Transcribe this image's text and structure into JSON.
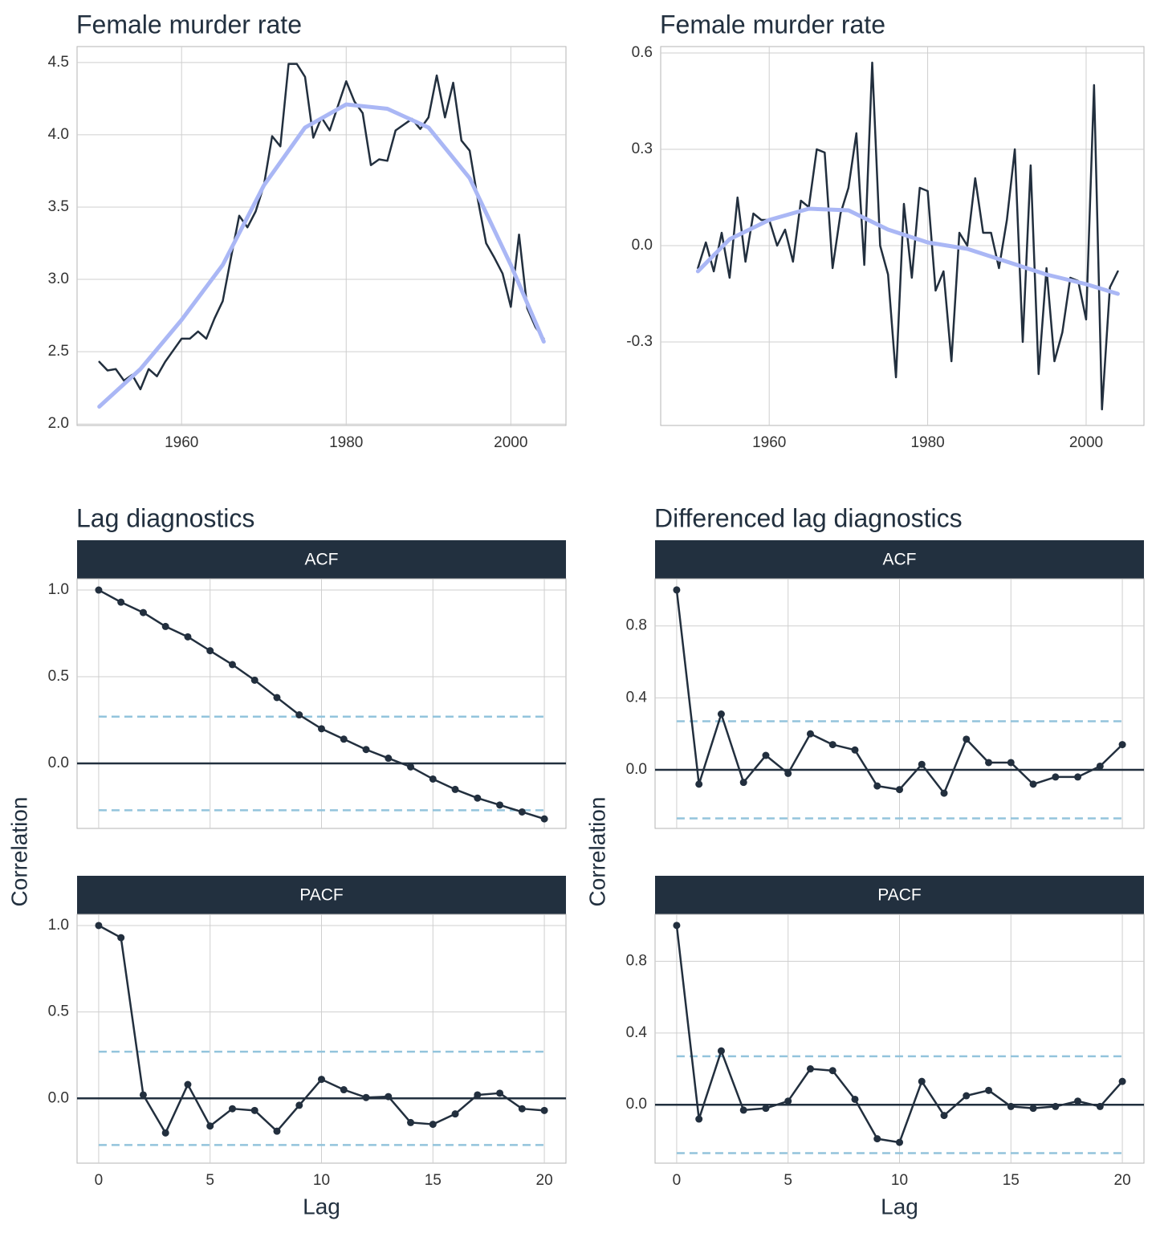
{
  "chart_data": [
    {
      "type": "line",
      "title": "Female murder rate",
      "x": [
        1950,
        1951,
        1952,
        1953,
        1954,
        1955,
        1956,
        1957,
        1958,
        1959,
        1960,
        1961,
        1962,
        1963,
        1964,
        1965,
        1966,
        1967,
        1968,
        1969,
        1970,
        1971,
        1972,
        1973,
        1974,
        1975,
        1976,
        1977,
        1978,
        1979,
        1980,
        1981,
        1982,
        1983,
        1984,
        1985,
        1986,
        1987,
        1988,
        1989,
        1990,
        1991,
        1992,
        1993,
        1994,
        1995,
        1996,
        1997,
        1998,
        1999,
        2000,
        2001,
        2002,
        2003,
        2004
      ],
      "series": [
        {
          "color": "#222f3e",
          "values": [
            2.43,
            2.37,
            2.38,
            2.3,
            2.34,
            2.24,
            2.38,
            2.33,
            2.43,
            2.51,
            2.59,
            2.59,
            2.64,
            2.59,
            2.73,
            2.85,
            3.15,
            3.44,
            3.36,
            3.47,
            3.65,
            3.99,
            3.92,
            4.49,
            4.49,
            4.4,
            3.98,
            4.12,
            4.03,
            4.2,
            4.37,
            4.23,
            4.15,
            3.79,
            3.83,
            3.82,
            4.03,
            4.07,
            4.11,
            4.04,
            4.12,
            4.41,
            4.12,
            4.36,
            3.96,
            3.89,
            3.55,
            3.25,
            3.15,
            3.04,
            2.81,
            3.31,
            2.8,
            2.67,
            2.59
          ]
        },
        {
          "color": "#aab7f5",
          "x": [
            1950,
            1955,
            1960,
            1965,
            1970,
            1975,
            1980,
            1985,
            1990,
            1995,
            2000,
            2004
          ],
          "values": [
            2.12,
            2.38,
            2.72,
            3.1,
            3.65,
            4.05,
            4.21,
            4.18,
            4.05,
            3.7,
            3.1,
            2.57
          ]
        }
      ],
      "xlim": [
        1947.3,
        2006.7
      ],
      "xticks": [
        1960,
        1980,
        2000
      ],
      "ylim": [
        1.99,
        4.61
      ],
      "yticks": [
        {
          "value": 2,
          "label": "2.0"
        },
        2.5,
        {
          "value": 3,
          "label": "3.0"
        },
        3.5,
        {
          "value": 4,
          "label": "4.0"
        },
        4.5
      ],
      "grid": true
    },
    {
      "type": "line",
      "title": "Female murder rate",
      "x": [
        1951,
        1952,
        1953,
        1954,
        1955,
        1956,
        1957,
        1958,
        1959,
        1960,
        1961,
        1962,
        1963,
        1964,
        1965,
        1966,
        1967,
        1968,
        1969,
        1970,
        1971,
        1972,
        1973,
        1974,
        1975,
        1976,
        1977,
        1978,
        1979,
        1980,
        1981,
        1982,
        1983,
        1984,
        1985,
        1986,
        1987,
        1988,
        1989,
        1990,
        1991,
        1992,
        1993,
        1994,
        1995,
        1996,
        1997,
        1998,
        1999,
        2000,
        2001,
        2002,
        2003,
        2004
      ],
      "series": [
        {
          "color": "#222f3e",
          "values": [
            -0.07,
            0.01,
            -0.08,
            0.04,
            -0.1,
            0.15,
            -0.05,
            0.1,
            0.08,
            0.08,
            0.0,
            0.05,
            -0.05,
            0.14,
            0.12,
            0.3,
            0.29,
            -0.07,
            0.1,
            0.18,
            0.35,
            -0.06,
            0.57,
            0.0,
            -0.09,
            -0.41,
            0.13,
            -0.1,
            0.18,
            0.17,
            -0.14,
            -0.08,
            -0.36,
            0.04,
            0.0,
            0.21,
            0.04,
            0.04,
            -0.07,
            0.08,
            0.3,
            -0.3,
            0.25,
            -0.4,
            -0.07,
            -0.36,
            -0.27,
            -0.1,
            -0.11,
            -0.23,
            0.5,
            -0.51,
            -0.13,
            -0.08
          ]
        },
        {
          "color": "#aab7f5",
          "x": [
            1951,
            1955,
            1960,
            1965,
            1970,
            1975,
            1980,
            1985,
            1990,
            1995,
            2000,
            2004
          ],
          "values": [
            -0.08,
            0.02,
            0.08,
            0.115,
            0.11,
            0.05,
            0.01,
            -0.01,
            -0.05,
            -0.09,
            -0.12,
            -0.15
          ]
        }
      ],
      "xlim": [
        1946.3,
        2007.3
      ],
      "xticks": [
        1960,
        1980,
        2000
      ],
      "ylim": [
        -0.56,
        0.62
      ],
      "yticks": [
        -0.3,
        {
          "value": 0,
          "label": "0.0"
        },
        0.3,
        0.6
      ],
      "grid": true
    },
    {
      "type": "acf",
      "title": "Lag diagnostics",
      "x_label": "Lag",
      "y_label": "Correlation",
      "x": [
        0,
        1,
        2,
        3,
        4,
        5,
        6,
        7,
        8,
        9,
        10,
        11,
        12,
        13,
        14,
        15,
        16,
        17,
        18,
        19,
        20
      ],
      "ci": 0.27,
      "color": "#222f3e",
      "ci_color": "#93c4dc",
      "xlim": [
        -0.97,
        20.97
      ],
      "xticks": [
        0,
        5,
        10,
        15,
        20
      ],
      "ylim": [
        -0.375,
        1.065
      ],
      "yticks": [
        {
          "value": 0,
          "label": "0.0"
        },
        0.5,
        {
          "value": 1,
          "label": "1.0"
        }
      ],
      "panels": [
        {
          "strip": "ACF",
          "values": [
            1.0,
            0.93,
            0.87,
            0.79,
            0.73,
            0.65,
            0.57,
            0.48,
            0.38,
            0.28,
            0.2,
            0.14,
            0.08,
            0.03,
            -0.02,
            -0.09,
            -0.15,
            -0.2,
            -0.24,
            -0.28,
            -0.32
          ]
        },
        {
          "strip": "PACF",
          "values": [
            1.0,
            0.93,
            0.02,
            -0.2,
            0.08,
            -0.16,
            -0.06,
            -0.07,
            -0.19,
            -0.04,
            0.11,
            0.05,
            0.005,
            0.01,
            -0.14,
            -0.15,
            -0.09,
            0.02,
            0.03,
            -0.06,
            -0.07
          ]
        }
      ]
    },
    {
      "type": "acf",
      "title": "Differenced lag diagnostics",
      "x_label": "Lag",
      "y_label": "Correlation",
      "x": [
        0,
        1,
        2,
        3,
        4,
        5,
        6,
        7,
        8,
        9,
        10,
        11,
        12,
        13,
        14,
        15,
        16,
        17,
        18,
        19,
        20
      ],
      "ci": 0.27,
      "color": "#222f3e",
      "ci_color": "#93c4dc",
      "xlim": [
        -0.97,
        20.97
      ],
      "xticks": [
        0,
        5,
        10,
        15,
        20
      ],
      "ylim": [
        -0.326,
        1.062
      ],
      "yticks": [
        {
          "value": 0,
          "label": "0.0"
        },
        0.4,
        0.8
      ],
      "panels": [
        {
          "strip": "ACF",
          "values": [
            1.0,
            -0.08,
            0.31,
            -0.07,
            0.08,
            -0.02,
            0.2,
            0.14,
            0.11,
            -0.09,
            -0.11,
            0.03,
            -0.13,
            0.17,
            0.04,
            0.04,
            -0.08,
            -0.04,
            -0.04,
            0.02,
            0.14
          ]
        },
        {
          "strip": "PACF",
          "values": [
            1.0,
            -0.08,
            0.3,
            -0.03,
            -0.02,
            0.02,
            0.2,
            0.19,
            0.03,
            -0.19,
            -0.21,
            0.13,
            -0.06,
            0.05,
            0.08,
            -0.01,
            -0.02,
            -0.01,
            0.02,
            -0.01,
            0.13
          ]
        }
      ]
    }
  ]
}
